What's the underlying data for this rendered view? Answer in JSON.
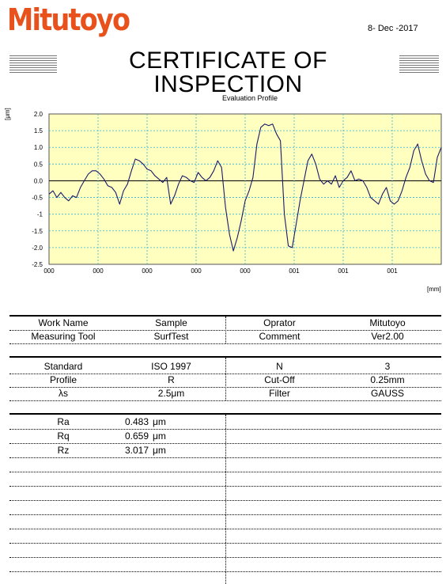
{
  "header": {
    "logo_text": "Mitutoyo",
    "logo_color": "#e8501c",
    "date": "8- Dec -2017",
    "title": "CERTIFICATE OF INSPECTION"
  },
  "chart_data": {
    "type": "line",
    "title": "Evaluation Profile",
    "ylabel": "[μm]",
    "xlabel": "[mm]",
    "ylim": [
      -2.5,
      2.0
    ],
    "yticks": [
      "2.0",
      "1.5",
      "1.0",
      "0.5",
      "0.0",
      "-0.5",
      "-1",
      "-1.5",
      "-2.0",
      "-2.5"
    ],
    "xticks": [
      "000",
      "000",
      "000",
      "000",
      "000",
      "001",
      "001",
      "001"
    ],
    "grid": true,
    "background": "#ffffc0",
    "line_color": "#1a1a6a",
    "x": [
      0,
      0.02,
      0.04,
      0.06,
      0.08,
      0.1,
      0.12,
      0.14,
      0.16,
      0.18,
      0.2,
      0.22,
      0.24,
      0.26,
      0.28,
      0.3,
      0.32,
      0.34,
      0.36,
      0.38,
      0.4,
      0.42,
      0.44,
      0.46,
      0.48,
      0.5,
      0.52,
      0.54,
      0.56,
      0.58,
      0.6,
      0.62,
      0.64,
      0.66,
      0.68,
      0.7,
      0.72,
      0.74,
      0.76,
      0.78,
      0.8,
      0.82,
      0.84,
      0.86,
      0.88,
      0.9,
      0.92,
      0.94,
      0.96,
      0.98,
      1.0,
      1.02,
      1.04,
      1.06,
      1.08,
      1.1,
      1.12,
      1.14,
      1.16,
      1.18,
      1.2,
      1.22,
      1.24,
      1.26,
      1.28,
      1.3,
      1.32,
      1.34,
      1.36,
      1.38,
      1.4,
      1.42,
      1.44,
      1.46,
      1.48,
      1.5,
      1.52,
      1.54,
      1.56,
      1.58,
      1.6,
      1.62,
      1.64,
      1.66,
      1.68,
      1.7,
      1.72,
      1.74,
      1.76,
      1.78,
      1.8,
      1.82,
      1.84,
      1.86,
      1.88,
      1.9,
      1.92,
      1.94,
      1.96,
      1.98,
      2.0
    ],
    "y": [
      -0.4,
      -0.3,
      -0.5,
      -0.35,
      -0.5,
      -0.6,
      -0.45,
      -0.5,
      -0.2,
      0.0,
      0.2,
      0.3,
      0.3,
      0.2,
      0.05,
      -0.15,
      -0.2,
      -0.35,
      -0.7,
      -0.3,
      -0.1,
      0.3,
      0.65,
      0.6,
      0.5,
      0.35,
      0.3,
      0.15,
      0.05,
      -0.05,
      0.1,
      -0.7,
      -0.45,
      -0.1,
      0.15,
      0.1,
      0.0,
      -0.05,
      0.25,
      0.1,
      0.0,
      0.1,
      0.3,
      0.6,
      0.4,
      -0.8,
      -1.6,
      -2.1,
      -1.7,
      -1.2,
      -0.6,
      -0.3,
      0.1,
      1.1,
      1.6,
      1.7,
      1.65,
      1.7,
      1.4,
      1.2,
      -1.0,
      -1.95,
      -2.0,
      -1.3,
      -0.6,
      0.0,
      0.6,
      0.8,
      0.5,
      0.05,
      -0.1,
      0.0,
      -0.1,
      0.15,
      -0.2,
      0.0,
      0.1,
      0.3,
      0.0,
      0.05,
      0.0,
      -0.2,
      -0.5,
      -0.6,
      -0.7,
      -0.4,
      -0.2,
      -0.6,
      -0.7,
      -0.6,
      -0.3,
      0.1,
      0.4,
      0.9,
      1.1,
      0.6,
      0.2,
      0.0,
      -0.05,
      0.7,
      1.0
    ]
  },
  "info_table": {
    "rows": [
      [
        "Work Name",
        "Sample",
        "Oprator",
        "Mitutoyo"
      ],
      [
        "Measuring Tool",
        "SurfTest",
        "Comment",
        "Ver2.00"
      ]
    ]
  },
  "condition_table": {
    "rows": [
      [
        "Standard",
        "ISO 1997",
        "N",
        "3"
      ],
      [
        "Profile",
        "R",
        "Cut-Off",
        "0.25mm"
      ],
      [
        "λs",
        "2.5μm",
        "Filter",
        "GAUSS"
      ]
    ]
  },
  "results": [
    {
      "name": "Ra",
      "value": "0.483",
      "unit": "μm"
    },
    {
      "name": "Rq",
      "value": "0.659",
      "unit": "μm"
    },
    {
      "name": "Rz",
      "value": "3.017",
      "unit": "μm"
    }
  ]
}
